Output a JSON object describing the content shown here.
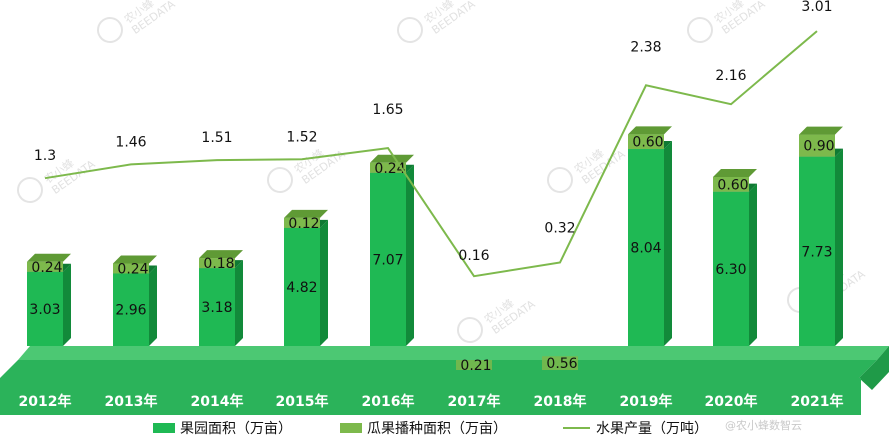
{
  "chart_data": {
    "type": "bar",
    "categories": [
      "2012年",
      "2013年",
      "2014年",
      "2015年",
      "2016年",
      "2017年",
      "2018年",
      "2019年",
      "2020年",
      "2021年"
    ],
    "series": [
      {
        "name": "果园面积（万亩）",
        "kind": "bar",
        "values": [
          3.03,
          2.96,
          3.18,
          4.82,
          7.07,
          null,
          null,
          8.04,
          6.3,
          7.73
        ],
        "labels": [
          "3.03",
          "2.96",
          "3.18",
          "4.82",
          "7.07",
          "",
          "",
          "8.04",
          "6.30",
          "7.73"
        ]
      },
      {
        "name": "瓜果播种面积（万亩）",
        "kind": "stacked-bar",
        "values": [
          0.24,
          0.24,
          0.18,
          0.12,
          0.24,
          0.21,
          0.56,
          0.6,
          0.6,
          0.9
        ],
        "labels": [
          "0.24",
          "0.24",
          "0.18",
          "0.12",
          "0.24",
          "0.21",
          "0.56",
          "0.60",
          "0.60",
          "0.90"
        ]
      },
      {
        "name": "水果产量（万吨）",
        "kind": "line",
        "values": [
          1.3,
          1.46,
          1.51,
          1.52,
          1.65,
          0.16,
          0.32,
          2.38,
          2.16,
          3.01
        ],
        "labels": [
          "1.3",
          "1.46",
          "1.51",
          "1.52",
          "1.65",
          "0.16",
          "0.32",
          "2.38",
          "2.16",
          "3.01"
        ]
      }
    ],
    "legend_position": "bottom",
    "grid": false
  },
  "watermark": {
    "brand": "农小蜂",
    "brand_en": "BEEDATA",
    "footer": "@农小蜂数智云"
  },
  "colors": {
    "bar": "#1fb954",
    "bar_side": "#128a3a",
    "bar_top": "#0f7a33",
    "stack": "#7db94c",
    "stack_top": "#5f9a35",
    "line": "#7db94c",
    "floor": "#2bb35a",
    "floor_top": "#4cc873"
  }
}
